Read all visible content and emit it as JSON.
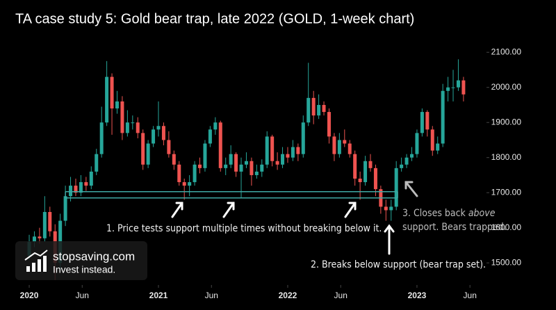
{
  "chart_data": {
    "type": "candlestick",
    "title": "TA case study 5: Gold bear trap, late 2022 (GOLD, 1-week chart)",
    "up_color": "#26a69a",
    "down_color": "#ef5350",
    "support_color": "#3fa9a4",
    "xlim": [
      2019.774,
      2023.538
    ],
    "ylim": [
      1437,
      2249
    ],
    "xticks": [
      {
        "value": 2020.0,
        "label": "2020"
      },
      {
        "value": 2020.41,
        "label": "Jun"
      },
      {
        "value": 2021.0,
        "label": "2021"
      },
      {
        "value": 2021.41,
        "label": "Jun"
      },
      {
        "value": 2022.0,
        "label": "2022"
      },
      {
        "value": 2022.41,
        "label": "Jun"
      },
      {
        "value": 2023.0,
        "label": "2023"
      },
      {
        "value": 2023.41,
        "label": "Jun"
      }
    ],
    "yticks": [
      {
        "value": 1500,
        "label": "1500.00"
      },
      {
        "value": 1600,
        "label": "1600.00"
      },
      {
        "value": 1700,
        "label": "1700.00"
      },
      {
        "value": 1800,
        "label": "1800.00"
      },
      {
        "value": 1900,
        "label": "1900.00"
      },
      {
        "value": 2000,
        "label": "2000.00"
      },
      {
        "value": 2100,
        "label": "2100.00"
      }
    ],
    "x": [
      2020.0,
      2020.04,
      2020.08,
      2020.12,
      2020.16,
      2020.2,
      2020.24,
      2020.28,
      2020.32,
      2020.36,
      2020.4,
      2020.44,
      2020.48,
      2020.52,
      2020.56,
      2020.6,
      2020.64,
      2020.68,
      2020.72,
      2020.76,
      2020.8,
      2020.84,
      2020.88,
      2020.92,
      2020.96,
      2021.0,
      2021.04,
      2021.08,
      2021.12,
      2021.16,
      2021.2,
      2021.24,
      2021.28,
      2021.32,
      2021.36,
      2021.4,
      2021.44,
      2021.48,
      2021.52,
      2021.56,
      2021.6,
      2021.64,
      2021.68,
      2021.72,
      2021.76,
      2021.8,
      2021.84,
      2021.88,
      2021.92,
      2021.96,
      2022.0,
      2022.04,
      2022.08,
      2022.12,
      2022.16,
      2022.2,
      2022.24,
      2022.28,
      2022.32,
      2022.36,
      2022.4,
      2022.44,
      2022.48,
      2022.52,
      2022.56,
      2022.6,
      2022.64,
      2022.68,
      2022.72,
      2022.76,
      2022.8,
      2022.84,
      2022.88,
      2022.92,
      2022.96,
      2023.0,
      2023.04,
      2023.08,
      2023.12,
      2023.16,
      2023.2,
      2023.24,
      2023.28,
      2023.32,
      2023.36
    ],
    "open": [
      1520,
      1560,
      1575,
      1570,
      1645,
      1590,
      1500,
      1620,
      1690,
      1720,
      1700,
      1730,
      1720,
      1760,
      1810,
      1900,
      2030,
      1940,
      1960,
      1870,
      1900,
      1900,
      1870,
      1780,
      1840,
      1880,
      1890,
      1850,
      1810,
      1780,
      1730,
      1720,
      1730,
      1780,
      1770,
      1840,
      1880,
      1900,
      1770,
      1780,
      1810,
      1760,
      1780,
      1790,
      1750,
      1760,
      1780,
      1860,
      1790,
      1780,
      1810,
      1800,
      1830,
      1810,
      1900,
      1970,
      1920,
      1950,
      1930,
      1860,
      1810,
      1850,
      1840,
      1810,
      1740,
      1730,
      1790,
      1770,
      1710,
      1660,
      1650,
      1660,
      1770,
      1780,
      1800,
      1810,
      1870,
      1930,
      1880,
      1820,
      1840,
      1990,
      2000,
      2000,
      2020
    ],
    "high": [
      1580,
      1590,
      1600,
      1690,
      1660,
      1610,
      1640,
      1720,
      1745,
      1740,
      1750,
      1745,
      1775,
      1825,
      1945,
      2075,
      2040,
      1990,
      1975,
      1935,
      1920,
      1915,
      1880,
      1850,
      1890,
      1960,
      1900,
      1875,
      1820,
      1790,
      1740,
      1750,
      1790,
      1800,
      1850,
      1890,
      1915,
      1905,
      1800,
      1835,
      1815,
      1800,
      1815,
      1800,
      1780,
      1795,
      1875,
      1865,
      1815,
      1830,
      1830,
      1850,
      1840,
      1920,
      2070,
      1990,
      1980,
      1960,
      1940,
      1870,
      1870,
      1880,
      1850,
      1820,
      1760,
      1805,
      1810,
      1780,
      1720,
      1680,
      1680,
      1790,
      1800,
      1810,
      1830,
      1880,
      1940,
      1935,
      1890,
      1860,
      2010,
      2030,
      2050,
      2080,
      2030
    ],
    "low": [
      1510,
      1545,
      1555,
      1560,
      1575,
      1451,
      1480,
      1605,
      1675,
      1690,
      1690,
      1705,
      1710,
      1750,
      1800,
      1890,
      1865,
      1925,
      1850,
      1860,
      1880,
      1855,
      1765,
      1770,
      1830,
      1860,
      1835,
      1800,
      1765,
      1720,
      1680,
      1690,
      1720,
      1755,
      1760,
      1830,
      1865,
      1760,
      1750,
      1770,
      1745,
      1685,
      1770,
      1720,
      1740,
      1745,
      1770,
      1775,
      1765,
      1770,
      1785,
      1790,
      1790,
      1800,
      1890,
      1895,
      1910,
      1920,
      1840,
      1790,
      1800,
      1830,
      1800,
      1720,
      1680,
      1720,
      1760,
      1690,
      1640,
      1620,
      1620,
      1650,
      1760,
      1770,
      1790,
      1800,
      1860,
      1860,
      1805,
      1810,
      1830,
      1960,
      1960,
      1990,
      1960
    ],
    "close": [
      1560,
      1575,
      1570,
      1645,
      1590,
      1500,
      1620,
      1690,
      1720,
      1700,
      1730,
      1720,
      1760,
      1810,
      1900,
      2030,
      1940,
      1960,
      1870,
      1900,
      1900,
      1870,
      1780,
      1840,
      1880,
      1890,
      1850,
      1810,
      1780,
      1730,
      1720,
      1730,
      1780,
      1770,
      1840,
      1880,
      1900,
      1770,
      1780,
      1810,
      1760,
      1780,
      1790,
      1750,
      1760,
      1780,
      1860,
      1790,
      1780,
      1810,
      1800,
      1830,
      1810,
      1900,
      1970,
      1920,
      1950,
      1930,
      1860,
      1810,
      1850,
      1840,
      1810,
      1740,
      1730,
      1790,
      1770,
      1710,
      1660,
      1650,
      1660,
      1770,
      1780,
      1800,
      1810,
      1870,
      1930,
      1880,
      1820,
      1840,
      1990,
      2000,
      2000,
      2020,
      1980
    ],
    "support": {
      "levels": [
        1703,
        1685
      ],
      "x": [
        2020.28,
        2022.85
      ]
    },
    "annotations": [
      {
        "text": "1. Price tests support multiple times without breaking below it."
      },
      {
        "text": "2. Breaks below support (bear trap set)."
      },
      {
        "parts": [
          "3. Closes back ",
          "above",
          "support. Bears trapped."
        ]
      }
    ],
    "logo": {
      "site": "stopsaving.com",
      "tagline": "Invest instead."
    }
  }
}
